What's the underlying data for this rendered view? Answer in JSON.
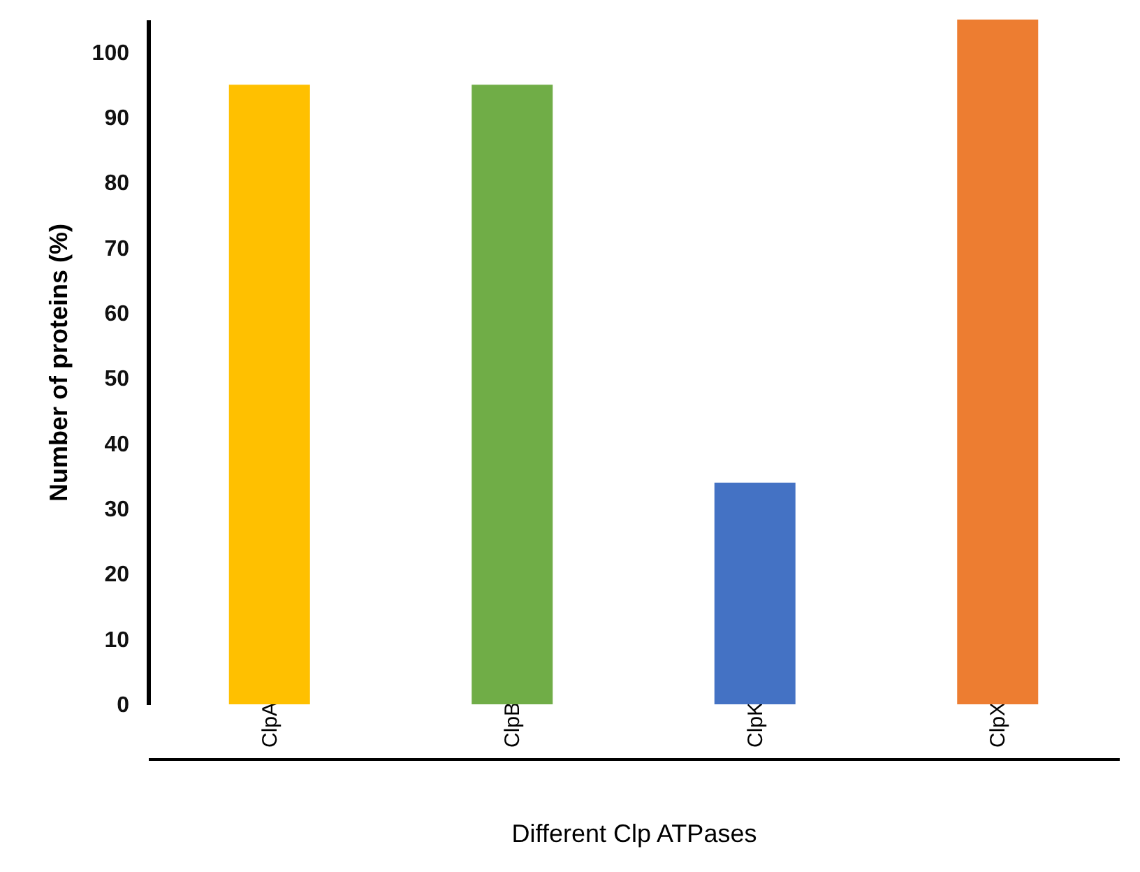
{
  "chart_data": {
    "type": "bar",
    "xlabel": "Different Clp ATPases",
    "ylabel": "Number of proteins (%)",
    "categories": [
      "ClpA",
      "ClpB",
      "ClpK",
      "ClpX"
    ],
    "values": [
      95,
      95,
      34,
      105
    ],
    "colors": [
      "#ffc000",
      "#70ad47",
      "#4472c4",
      "#ed7d31"
    ],
    "ylim": [
      0,
      105
    ],
    "yticks": [
      0,
      10,
      20,
      30,
      40,
      50,
      60,
      70,
      80,
      90,
      100
    ],
    "grid": false
  }
}
